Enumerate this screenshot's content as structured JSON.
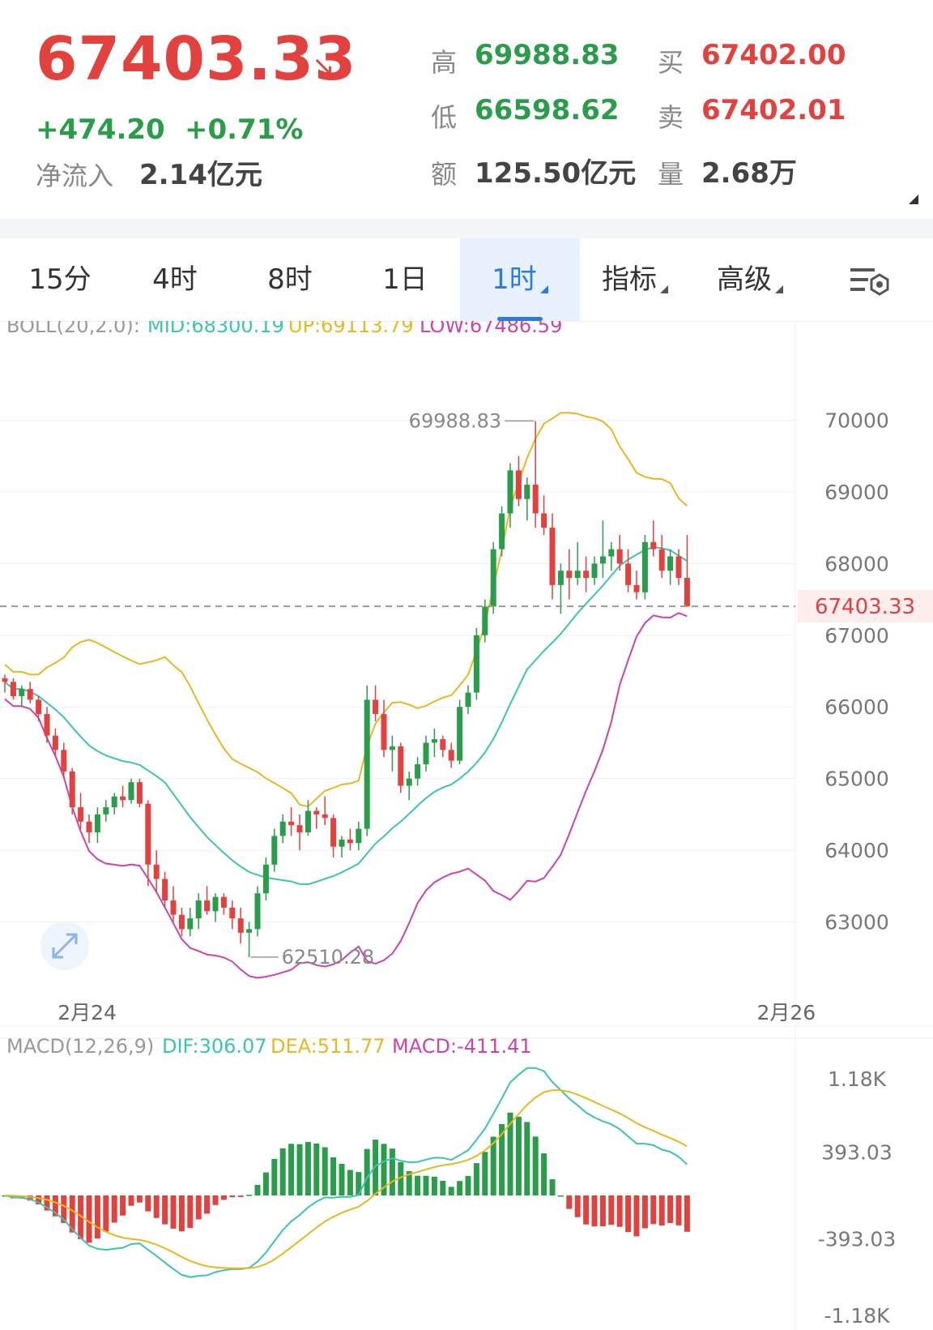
{
  "header": {
    "price": "67403.33",
    "change": "+474.20",
    "change_pct": "+0.71%",
    "net_inflow_label": "净流入",
    "net_inflow_value": "2.14亿元",
    "high_label": "高",
    "high_value": "69988.83",
    "low_label": "低",
    "low_value": "66598.62",
    "amount_label": "额",
    "amount_value": "125.50亿元",
    "buy_label": "买",
    "buy_value": "67402.00",
    "sell_label": "卖",
    "sell_value": "67402.01",
    "volume_label": "量",
    "volume_value": "2.68万"
  },
  "tabs": [
    {
      "label": "15分"
    },
    {
      "label": "4时"
    },
    {
      "label": "8时"
    },
    {
      "label": "1日"
    },
    {
      "label": "1时",
      "active": true
    },
    {
      "label": "指标"
    },
    {
      "label": "高级"
    }
  ],
  "colors": {
    "up": "#2a9d4a",
    "down": "#e2413e",
    "mid": "#3cc4b0",
    "upper": "#e8b820",
    "lower": "#cc44aa",
    "accent": "#2a7be4"
  },
  "chart_data": [
    {
      "type": "candlestick",
      "indicator": {
        "name": "BOLL(20,2.0):",
        "mid": "MID:68300.19",
        "up": "UP:69113.79",
        "low": "LOW:67486.59"
      },
      "ylim": [
        62000,
        71000
      ],
      "yticks": [
        "70000",
        "69000",
        "68000",
        "67000",
        "66000",
        "65000",
        "64000",
        "63000"
      ],
      "ytick_values": [
        70000,
        69000,
        68000,
        67000,
        66000,
        65000,
        64000,
        63000
      ],
      "xticks": [
        {
          "label": "2月24",
          "index": 4
        },
        {
          "label": "2月26",
          "index": 87
        }
      ],
      "current_price": {
        "value": 67403.33,
        "label": "67403.33"
      },
      "high_marker": {
        "value": 69988.83,
        "label": "69988.83"
      },
      "low_marker": {
        "value": 62510.28,
        "label": "62510.28"
      },
      "candles": [
        [
          66400,
          66450,
          66200,
          66350
        ],
        [
          66350,
          66400,
          66100,
          66150
        ],
        [
          66150,
          66300,
          66000,
          66250
        ],
        [
          66250,
          66350,
          66050,
          66100
        ],
        [
          66100,
          66150,
          65800,
          65900
        ],
        [
          65900,
          66000,
          65500,
          65600
        ],
        [
          65600,
          65700,
          65300,
          65400
        ],
        [
          65400,
          65500,
          65000,
          65100
        ],
        [
          65100,
          65150,
          64500,
          64600
        ],
        [
          64600,
          64800,
          64300,
          64400
        ],
        [
          64400,
          64500,
          64100,
          64250
        ],
        [
          64250,
          64600,
          64100,
          64500
        ],
        [
          64500,
          64700,
          64400,
          64600
        ],
        [
          64600,
          64800,
          64500,
          64750
        ],
        [
          64750,
          64900,
          64600,
          64700
        ],
        [
          64700,
          65000,
          64650,
          64950
        ],
        [
          64950,
          65000,
          64600,
          64650
        ],
        [
          64650,
          64700,
          63500,
          63800
        ],
        [
          63800,
          64000,
          63400,
          63600
        ],
        [
          63600,
          63700,
          63200,
          63300
        ],
        [
          63300,
          63500,
          63000,
          63100
        ],
        [
          63100,
          63200,
          62800,
          62900
        ],
        [
          62900,
          63200,
          62800,
          63050
        ],
        [
          63050,
          63400,
          62900,
          63300
        ],
        [
          63300,
          63500,
          63100,
          63150
        ],
        [
          63150,
          63400,
          63000,
          63350
        ],
        [
          63350,
          63400,
          63100,
          63200
        ],
        [
          63200,
          63300,
          62900,
          63050
        ],
        [
          63050,
          63200,
          62700,
          62850
        ],
        [
          62850,
          63000,
          62510,
          62900
        ],
        [
          62900,
          63500,
          62800,
          63400
        ],
        [
          63400,
          63900,
          63300,
          63800
        ],
        [
          63800,
          64300,
          63700,
          64200
        ],
        [
          64200,
          64500,
          64100,
          64400
        ],
        [
          64400,
          64600,
          64200,
          64350
        ],
        [
          64350,
          64500,
          64000,
          64250
        ],
        [
          64250,
          64700,
          64200,
          64550
        ],
        [
          64550,
          64600,
          64300,
          64500
        ],
        [
          64500,
          64750,
          64350,
          64450
        ],
        [
          64450,
          64500,
          63900,
          64050
        ],
        [
          64050,
          64200,
          63900,
          64150
        ],
        [
          64150,
          64300,
          64000,
          64100
        ],
        [
          64100,
          64400,
          64000,
          64300
        ],
        [
          64300,
          66300,
          64200,
          66100
        ],
        [
          66100,
          66300,
          65800,
          65900
        ],
        [
          65900,
          66100,
          65300,
          65400
        ],
        [
          65400,
          65600,
          65100,
          65450
        ],
        [
          65450,
          65500,
          64800,
          64900
        ],
        [
          64900,
          65100,
          64700,
          65000
        ],
        [
          65000,
          65300,
          64900,
          65200
        ],
        [
          65200,
          65600,
          65100,
          65500
        ],
        [
          65500,
          65700,
          65300,
          65550
        ],
        [
          65550,
          65600,
          65300,
          65400
        ],
        [
          65400,
          65500,
          65150,
          65250
        ],
        [
          65250,
          66100,
          65200,
          66000
        ],
        [
          66000,
          66300,
          65900,
          66200
        ],
        [
          66200,
          67100,
          66100,
          67000
        ],
        [
          67000,
          67500,
          66900,
          67400
        ],
        [
          67400,
          68300,
          67300,
          68200
        ],
        [
          68200,
          68800,
          68100,
          68700
        ],
        [
          68700,
          69400,
          68500,
          69300
        ],
        [
          69300,
          69500,
          68800,
          68900
        ],
        [
          68900,
          69200,
          68600,
          69100
        ],
        [
          69100,
          69988,
          68500,
          68700
        ],
        [
          68700,
          68950,
          68400,
          68500
        ],
        [
          68500,
          68700,
          67500,
          67700
        ],
        [
          67700,
          68000,
          67300,
          67900
        ],
        [
          67900,
          68200,
          67500,
          67800
        ],
        [
          67800,
          68300,
          67700,
          67900
        ],
        [
          67900,
          68100,
          67600,
          67800
        ],
        [
          67800,
          68100,
          67700,
          68000
        ],
        [
          68000,
          68600,
          67800,
          68100
        ],
        [
          68100,
          68300,
          67900,
          68200
        ],
        [
          68200,
          68400,
          67900,
          68000
        ],
        [
          68000,
          68200,
          67600,
          67700
        ],
        [
          67700,
          67900,
          67500,
          67600
        ],
        [
          67600,
          68400,
          67500,
          68300
        ],
        [
          68300,
          68600,
          68100,
          68200
        ],
        [
          68200,
          68400,
          67800,
          67900
        ],
        [
          67900,
          68200,
          67700,
          68100
        ],
        [
          68100,
          68200,
          67700,
          67800
        ],
        [
          67800,
          68400,
          67400,
          67403
        ]
      ]
    },
    {
      "type": "macd",
      "indicator": {
        "name": "MACD(12,26,9)",
        "dif": "DIF:306.07",
        "dea": "DEA:511.77",
        "macd": "MACD:-411.41"
      },
      "ylim": [
        -1180,
        1180
      ],
      "yticks": [
        "1.18K",
        "393.03",
        "-393.03",
        "-1.18K"
      ],
      "ytick_values": [
        1180,
        393.03,
        -393.03,
        -1180
      ]
    }
  ]
}
